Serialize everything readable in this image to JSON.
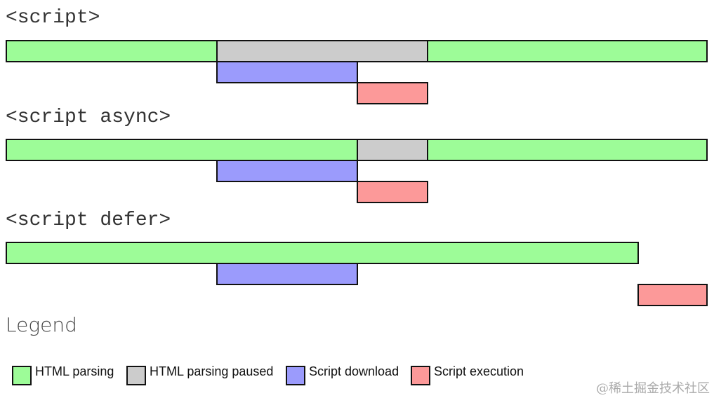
{
  "colors": {
    "html_parsing": "#9dfc98",
    "html_parsing_paused": "#cccccc",
    "script_download": "#9b9bfc",
    "script_execution": "#fc9999"
  },
  "sections": [
    {
      "title": "<script>",
      "bars": [
        {
          "type": "html_parsing",
          "start": 8,
          "end": 310
        },
        {
          "type": "html_parsing_paused",
          "start": 308,
          "end": 610
        },
        {
          "type": "html_parsing",
          "start": 608,
          "end": 1008
        },
        {
          "type": "script_download",
          "start": 308,
          "end": 510
        },
        {
          "type": "script_execution",
          "start": 508,
          "end": 610
        }
      ]
    },
    {
      "title": "<script async>",
      "bars": [
        {
          "type": "html_parsing",
          "start": 8,
          "end": 510
        },
        {
          "type": "html_parsing_paused",
          "start": 508,
          "end": 610
        },
        {
          "type": "html_parsing",
          "start": 608,
          "end": 1008
        },
        {
          "type": "script_download",
          "start": 308,
          "end": 510
        },
        {
          "type": "script_execution",
          "start": 508,
          "end": 610
        }
      ]
    },
    {
      "title": "<script defer>",
      "bars": [
        {
          "type": "html_parsing",
          "start": 8,
          "end": 910
        },
        {
          "type": "script_download",
          "start": 308,
          "end": 510
        },
        {
          "type": "script_execution",
          "start": 908,
          "end": 1008
        }
      ]
    }
  ],
  "legend": {
    "title": "Legend",
    "items": [
      {
        "key": "html_parsing",
        "label": "HTML parsing"
      },
      {
        "key": "html_parsing_paused",
        "label": "HTML parsing paused"
      },
      {
        "key": "script_download",
        "label": "Script download"
      },
      {
        "key": "script_execution",
        "label": "Script execution"
      }
    ]
  },
  "watermark": "@稀土掘金技术社区"
}
